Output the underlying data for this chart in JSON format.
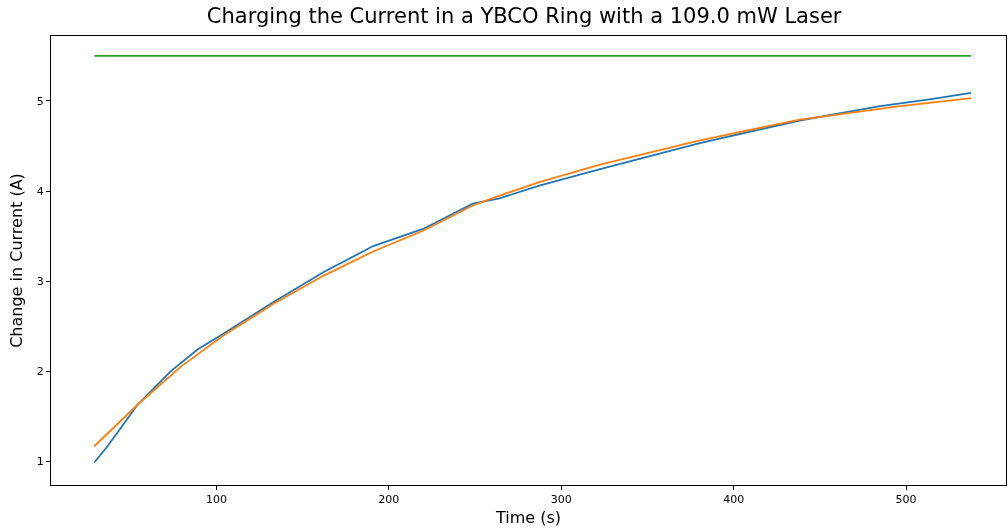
{
  "chart_data": {
    "type": "line",
    "title": "Charging the Current in a YBCO Ring with a 109.0 mW Laser",
    "xlabel": "Time (s)",
    "ylabel": "Change in Current (A)",
    "series": [
      {
        "color": "#1f77b4",
        "x": [
          29.1,
          36.8,
          54.2,
          73.4,
          88.8,
          104.2,
          133.1,
          162,
          190.9,
          219.8,
          248.7,
          264.2,
          287.3,
          322,
          379.8,
          437.6,
          484,
          514.6,
          537.8
        ],
        "values": [
          0.99,
          1.17,
          1.63,
          2.0,
          2.24,
          2.42,
          2.77,
          3.1,
          3.39,
          3.58,
          3.86,
          3.92,
          4.06,
          4.24,
          4.53,
          4.78,
          4.94,
          5.02,
          5.09
        ]
      },
      {
        "color": "#ff7f0e",
        "x": [
          29.1,
          54.2,
          79.2,
          104.2,
          133.1,
          162,
          190.9,
          219.8,
          248.7,
          264.2,
          287.3,
          322,
          379.8,
          437.6,
          495.4,
          537.8
        ],
        "values": [
          1.17,
          1.63,
          2.05,
          2.4,
          2.75,
          3.06,
          3.33,
          3.56,
          3.84,
          3.95,
          4.1,
          4.29,
          4.56,
          4.79,
          4.94,
          5.03
        ]
      },
      {
        "color": "#2ca02c",
        "x": [
          29.1,
          537.8
        ],
        "values": [
          5.5,
          5.5
        ]
      }
    ],
    "xlim": [
      4,
      558
    ],
    "xticks": [
      100,
      200,
      300,
      400,
      500
    ],
    "ylim": [
      0.74,
      5.72
    ],
    "yticks": [
      1,
      2,
      3,
      4,
      5
    ],
    "grid": false,
    "marker": "none",
    "line_style": "solid"
  }
}
